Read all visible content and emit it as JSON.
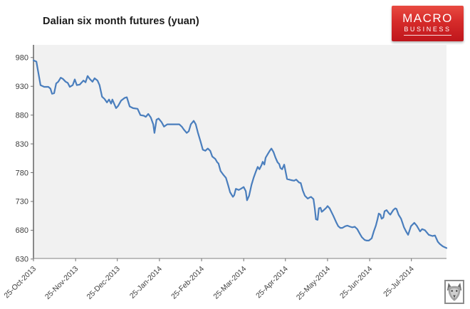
{
  "chart_data": {
    "type": "line",
    "title": "Dalian six month futures (yuan)",
    "xlabel": "",
    "ylabel": "",
    "grid": false,
    "legend": "none",
    "plot_bg": "#f1f1f1",
    "axis_color_left": "#4d4d4d",
    "axis_color_bottom": "#9a9a9a",
    "tick_color": "#6e6e6e",
    "label_color": "#3f3f3f",
    "y_ticks": [
      980,
      930,
      880,
      830,
      780,
      730,
      680,
      630
    ],
    "ylim": [
      631,
      1002
    ],
    "x_ticks": [
      {
        "t": 0.0,
        "label": "25-Oct-2013"
      },
      {
        "t": 0.102,
        "label": "25-Nov-2013"
      },
      {
        "t": 0.203,
        "label": "25-Dec-2013"
      },
      {
        "t": 0.305,
        "label": "25-Jan-2014"
      },
      {
        "t": 0.407,
        "label": "25-Feb-2014"
      },
      {
        "t": 0.509,
        "label": "25-Mar-2014"
      },
      {
        "t": 0.61,
        "label": "25-Apr-2014"
      },
      {
        "t": 0.712,
        "label": "25-May-2014"
      },
      {
        "t": 0.814,
        "label": "25-Jun-2014"
      },
      {
        "t": 0.915,
        "label": "25-Jul-2014"
      }
    ],
    "series": [
      {
        "name": "Dalian six month futures (yuan)",
        "color": "#4a7ebd",
        "points": [
          [
            0.0,
            975
          ],
          [
            0.007,
            973
          ],
          [
            0.017,
            932
          ],
          [
            0.026,
            929
          ],
          [
            0.036,
            929
          ],
          [
            0.041,
            926
          ],
          [
            0.045,
            917
          ],
          [
            0.05,
            918
          ],
          [
            0.055,
            935
          ],
          [
            0.06,
            938
          ],
          [
            0.066,
            945
          ],
          [
            0.071,
            943
          ],
          [
            0.078,
            938
          ],
          [
            0.083,
            936
          ],
          [
            0.088,
            929
          ],
          [
            0.095,
            932
          ],
          [
            0.1,
            942
          ],
          [
            0.105,
            932
          ],
          [
            0.112,
            933
          ],
          [
            0.121,
            940
          ],
          [
            0.126,
            937
          ],
          [
            0.131,
            948
          ],
          [
            0.136,
            943
          ],
          [
            0.143,
            938
          ],
          [
            0.148,
            944
          ],
          [
            0.155,
            940
          ],
          [
            0.16,
            932
          ],
          [
            0.166,
            912
          ],
          [
            0.172,
            908
          ],
          [
            0.178,
            902
          ],
          [
            0.183,
            907
          ],
          [
            0.188,
            900
          ],
          [
            0.191,
            907
          ],
          [
            0.2,
            892
          ],
          [
            0.205,
            896
          ],
          [
            0.212,
            905
          ],
          [
            0.221,
            910
          ],
          [
            0.226,
            911
          ],
          [
            0.233,
            895
          ],
          [
            0.241,
            892
          ],
          [
            0.252,
            891
          ],
          [
            0.259,
            880
          ],
          [
            0.267,
            879
          ],
          [
            0.272,
            877
          ],
          [
            0.278,
            882
          ],
          [
            0.284,
            876
          ],
          [
            0.29,
            864
          ],
          [
            0.293,
            849
          ],
          [
            0.298,
            872
          ],
          [
            0.303,
            874
          ],
          [
            0.31,
            868
          ],
          [
            0.316,
            860
          ],
          [
            0.324,
            864
          ],
          [
            0.338,
            864
          ],
          [
            0.353,
            864
          ],
          [
            0.359,
            860
          ],
          [
            0.364,
            855
          ],
          [
            0.371,
            849
          ],
          [
            0.376,
            852
          ],
          [
            0.381,
            864
          ],
          [
            0.388,
            870
          ],
          [
            0.393,
            864
          ],
          [
            0.398,
            850
          ],
          [
            0.405,
            833
          ],
          [
            0.41,
            820
          ],
          [
            0.416,
            818
          ],
          [
            0.422,
            822
          ],
          [
            0.428,
            818
          ],
          [
            0.433,
            808
          ],
          [
            0.44,
            804
          ],
          [
            0.445,
            798
          ],
          [
            0.448,
            796
          ],
          [
            0.453,
            783
          ],
          [
            0.459,
            777
          ],
          [
            0.466,
            771
          ],
          [
            0.471,
            759
          ],
          [
            0.476,
            746
          ],
          [
            0.483,
            738
          ],
          [
            0.486,
            741
          ],
          [
            0.49,
            752
          ],
          [
            0.497,
            750
          ],
          [
            0.502,
            752
          ],
          [
            0.509,
            755
          ],
          [
            0.514,
            748
          ],
          [
            0.517,
            732
          ],
          [
            0.522,
            740
          ],
          [
            0.528,
            759
          ],
          [
            0.533,
            771
          ],
          [
            0.538,
            781
          ],
          [
            0.543,
            790
          ],
          [
            0.547,
            786
          ],
          [
            0.552,
            793
          ],
          [
            0.555,
            799
          ],
          [
            0.559,
            794
          ],
          [
            0.562,
            806
          ],
          [
            0.567,
            812
          ],
          [
            0.572,
            818
          ],
          [
            0.576,
            822
          ],
          [
            0.581,
            816
          ],
          [
            0.586,
            806
          ],
          [
            0.591,
            798
          ],
          [
            0.595,
            795
          ],
          [
            0.598,
            788
          ],
          [
            0.602,
            786
          ],
          [
            0.607,
            794
          ],
          [
            0.614,
            769
          ],
          [
            0.619,
            768
          ],
          [
            0.624,
            767
          ],
          [
            0.631,
            766
          ],
          [
            0.636,
            768
          ],
          [
            0.643,
            763
          ],
          [
            0.647,
            762
          ],
          [
            0.652,
            749
          ],
          [
            0.657,
            740
          ],
          [
            0.664,
            735
          ],
          [
            0.669,
            737
          ],
          [
            0.672,
            738
          ],
          [
            0.678,
            734
          ],
          [
            0.681,
            718
          ],
          [
            0.684,
            699
          ],
          [
            0.688,
            698
          ],
          [
            0.691,
            718
          ],
          [
            0.695,
            719
          ],
          [
            0.698,
            712
          ],
          [
            0.703,
            715
          ],
          [
            0.709,
            719
          ],
          [
            0.712,
            722
          ],
          [
            0.717,
            718
          ],
          [
            0.726,
            705
          ],
          [
            0.733,
            694
          ],
          [
            0.738,
            687
          ],
          [
            0.743,
            684
          ],
          [
            0.748,
            684
          ],
          [
            0.755,
            687
          ],
          [
            0.76,
            688
          ],
          [
            0.767,
            686
          ],
          [
            0.772,
            685
          ],
          [
            0.778,
            686
          ],
          [
            0.784,
            682
          ],
          [
            0.79,
            674
          ],
          [
            0.795,
            668
          ],
          [
            0.802,
            663
          ],
          [
            0.807,
            662
          ],
          [
            0.812,
            662
          ],
          [
            0.819,
            666
          ],
          [
            0.824,
            678
          ],
          [
            0.829,
            688
          ],
          [
            0.833,
            699
          ],
          [
            0.836,
            709
          ],
          [
            0.84,
            707
          ],
          [
            0.843,
            700
          ],
          [
            0.847,
            702
          ],
          [
            0.85,
            713
          ],
          [
            0.855,
            715
          ],
          [
            0.86,
            710
          ],
          [
            0.864,
            707
          ],
          [
            0.871,
            715
          ],
          [
            0.876,
            718
          ],
          [
            0.879,
            717
          ],
          [
            0.884,
            707
          ],
          [
            0.89,
            700
          ],
          [
            0.893,
            694
          ],
          [
            0.897,
            685
          ],
          [
            0.902,
            678
          ],
          [
            0.907,
            672
          ],
          [
            0.914,
            687
          ],
          [
            0.922,
            693
          ],
          [
            0.928,
            688
          ],
          [
            0.936,
            678
          ],
          [
            0.941,
            682
          ],
          [
            0.948,
            680
          ],
          [
            0.957,
            672
          ],
          [
            0.966,
            670
          ],
          [
            0.972,
            671
          ],
          [
            0.979,
            660
          ],
          [
            0.984,
            656
          ],
          [
            0.991,
            652
          ],
          [
            0.997,
            650
          ],
          [
            1.0,
            649
          ]
        ]
      }
    ]
  },
  "logo": {
    "line1": "MACRO",
    "line2": "BUSINESS",
    "bg_top": "#e84a41",
    "bg_bottom": "#bf161c",
    "text_color": "#ffffff"
  },
  "icons": {
    "wolf": "wolf-head-logo"
  }
}
